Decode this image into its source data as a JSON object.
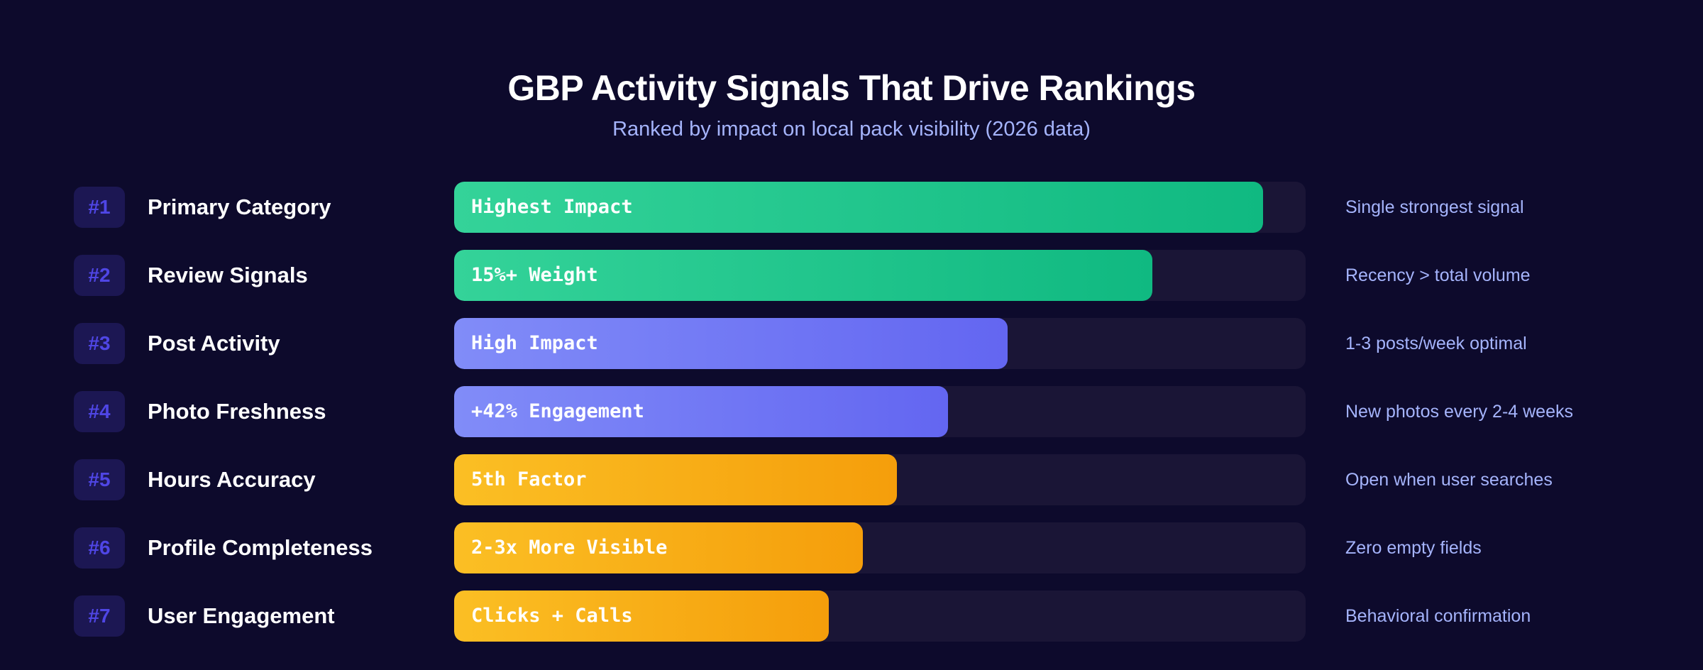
{
  "title": "GBP Activity Signals That Drive Rankings",
  "subtitle": "Ranked by impact on local pack visibility (2026 data)",
  "colors": {
    "background": "#0d0a2c",
    "track": "#1a1536",
    "badge_bg": "#1c1753",
    "badge_text": "#4f46e5",
    "note_text": "#a5b4fc",
    "green": [
      "#34d399",
      "#10b981"
    ],
    "indigo": [
      "#818cf8",
      "#6366f1"
    ],
    "amber": [
      "#fbbf24",
      "#f59e0b"
    ]
  },
  "chart_data": {
    "type": "bar",
    "orientation": "horizontal",
    "title": "GBP Activity Signals That Drive Rankings",
    "subtitle": "Ranked by impact on local pack visibility (2026 data)",
    "xlim": [
      0,
      100
    ],
    "grid": false,
    "legend": "none",
    "rows": [
      {
        "rank": "#1",
        "label": "Primary Category",
        "value": 95,
        "bar_text": "Highest Impact",
        "note": "Single strongest signal",
        "color": "green"
      },
      {
        "rank": "#2",
        "label": "Review Signals",
        "value": 82,
        "bar_text": "15%+ Weight",
        "note": "Recency > total volume",
        "color": "green"
      },
      {
        "rank": "#3",
        "label": "Post Activity",
        "value": 65,
        "bar_text": "High Impact",
        "note": "1-3 posts/week optimal",
        "color": "indigo"
      },
      {
        "rank": "#4",
        "label": "Photo Freshness",
        "value": 58,
        "bar_text": "+42% Engagement",
        "note": "New photos every 2-4 weeks",
        "color": "indigo"
      },
      {
        "rank": "#5",
        "label": "Hours Accuracy",
        "value": 52,
        "bar_text": "5th Factor",
        "note": "Open when user searches",
        "color": "amber"
      },
      {
        "rank": "#6",
        "label": "Profile Completeness",
        "value": 48,
        "bar_text": "2-3x More Visible",
        "note": "Zero empty fields",
        "color": "amber"
      },
      {
        "rank": "#7",
        "label": "User Engagement",
        "value": 44,
        "bar_text": "Clicks + Calls",
        "note": "Behavioral confirmation",
        "color": "amber"
      }
    ]
  }
}
